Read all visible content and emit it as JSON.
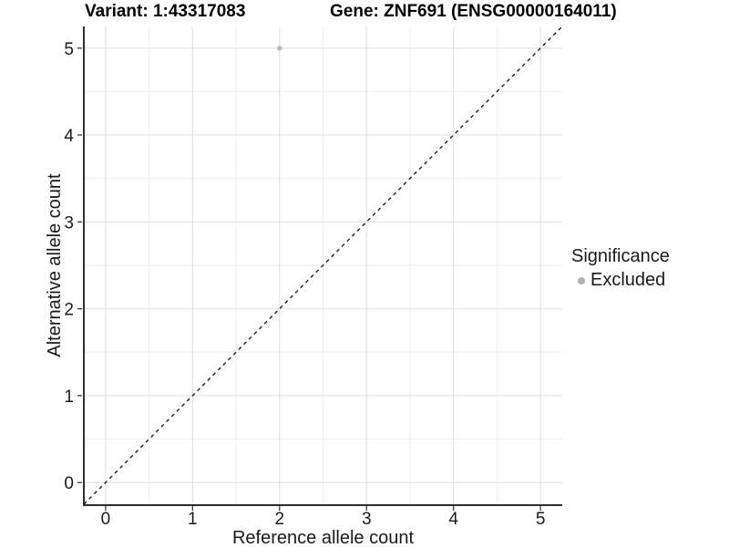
{
  "chart_data": {
    "type": "scatter",
    "title_left": "Variant: 1:43317083",
    "title_right": "Gene: ZNF691 (ENSG00000164011)",
    "xlabel": "Reference allele count",
    "ylabel": "Alternative allele count",
    "xlim": [
      -0.25,
      5.25
    ],
    "ylim": [
      -0.25,
      5.25
    ],
    "x_ticks": [
      0,
      1,
      2,
      3,
      4,
      5
    ],
    "y_ticks": [
      0,
      1,
      2,
      3,
      4,
      5
    ],
    "minor_grid_step": 0.5,
    "grid": "major+minor",
    "series": [
      {
        "name": "Excluded",
        "color": "#b8b8b8",
        "points": [
          {
            "x": 2,
            "y": 5
          }
        ]
      }
    ],
    "reference_line": {
      "kind": "identity",
      "from": [
        -0.25,
        -0.25
      ],
      "to": [
        5.25,
        5.25
      ],
      "style": "dashed",
      "color": "#111111"
    },
    "legend": {
      "title": "Significance",
      "position": "right",
      "items": [
        {
          "label": "Excluded",
          "color": "#b2b2b2"
        }
      ]
    },
    "colors": {
      "grid_major": "#e0e0e0",
      "grid_minor": "#eeeeee",
      "axis": "#2e2e2e",
      "text": "#1a1a1a",
      "background": "#ffffff"
    }
  }
}
